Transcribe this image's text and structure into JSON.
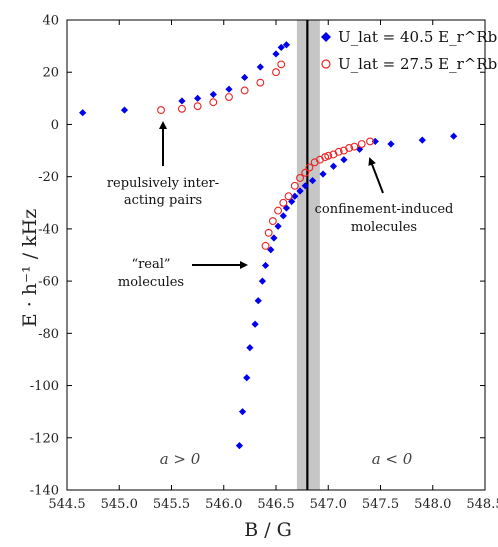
{
  "chart_data": {
    "type": "scatter",
    "xlabel": "B / G",
    "ylabel": "E · h⁻¹ / kHz",
    "xlim": [
      544.5,
      548.5
    ],
    "ylim": [
      -140,
      40
    ],
    "x_ticks": [
      544.5,
      545.0,
      545.5,
      546.0,
      546.5,
      547.0,
      547.5,
      548.0,
      548.5
    ],
    "x_tick_labels": [
      "544.5",
      "545.0",
      "545.5",
      "546.0",
      "546.5",
      "547.0",
      "547.5",
      "548.0",
      "548.5"
    ],
    "y_ticks": [
      -140,
      -120,
      -100,
      -80,
      -60,
      -40,
      -20,
      0,
      20,
      40
    ],
    "y_tick_labels": [
      "-140",
      "-120",
      "-100",
      "-80",
      "-60",
      "-40",
      "-20",
      "0",
      "20",
      "40"
    ],
    "legend_position": "top-right",
    "series": [
      {
        "name": "U_lat = 40.5 E_r^Rb",
        "marker": "diamond",
        "color": "#0000ee",
        "points": [
          [
            544.65,
            4.5
          ],
          [
            545.05,
            5.5
          ],
          [
            545.6,
            9
          ],
          [
            545.75,
            10
          ],
          [
            545.9,
            11.5
          ],
          [
            546.05,
            13.5
          ],
          [
            546.2,
            18
          ],
          [
            546.35,
            22
          ],
          [
            546.5,
            27
          ],
          [
            546.55,
            29.5
          ],
          [
            546.6,
            30.5
          ],
          [
            546.15,
            -123
          ],
          [
            546.18,
            -110
          ],
          [
            546.22,
            -97
          ],
          [
            546.25,
            -85.5
          ],
          [
            546.3,
            -76.5
          ],
          [
            546.33,
            -67.5
          ],
          [
            546.37,
            -60
          ],
          [
            546.4,
            -54
          ],
          [
            546.45,
            -48
          ],
          [
            546.48,
            -43.5
          ],
          [
            546.52,
            -39
          ],
          [
            546.57,
            -35
          ],
          [
            546.6,
            -32
          ],
          [
            546.65,
            -29.5
          ],
          [
            546.68,
            -27.5
          ],
          [
            546.73,
            -25.5
          ],
          [
            546.78,
            -23.5
          ],
          [
            546.85,
            -21.5
          ],
          [
            546.95,
            -19
          ],
          [
            547.05,
            -16
          ],
          [
            547.15,
            -13.5
          ],
          [
            547.3,
            -9.5
          ],
          [
            547.45,
            -6.5
          ],
          [
            547.6,
            -7.5
          ],
          [
            547.9,
            -6
          ],
          [
            548.2,
            -4.5
          ]
        ]
      },
      {
        "name": "U_lat = 27.5 E_r^Rb",
        "marker": "open-circle",
        "color": "#ee2222",
        "points": [
          [
            545.4,
            5.5
          ],
          [
            545.6,
            6
          ],
          [
            545.75,
            7
          ],
          [
            545.9,
            8.5
          ],
          [
            546.05,
            10.5
          ],
          [
            546.2,
            13
          ],
          [
            546.35,
            16
          ],
          [
            546.5,
            20
          ],
          [
            546.55,
            23
          ],
          [
            546.4,
            -46.5
          ],
          [
            546.43,
            -41.5
          ],
          [
            546.47,
            -37
          ],
          [
            546.52,
            -33
          ],
          [
            546.57,
            -30
          ],
          [
            546.62,
            -27.5
          ],
          [
            546.68,
            -23.5
          ],
          [
            546.73,
            -20.5
          ],
          [
            546.78,
            -18.5
          ],
          [
            546.82,
            -16.5
          ],
          [
            546.87,
            -14.5
          ],
          [
            546.92,
            -13.5
          ],
          [
            546.97,
            -12.5
          ],
          [
            547.0,
            -12
          ],
          [
            547.05,
            -11.5
          ],
          [
            547.1,
            -10.5
          ],
          [
            547.15,
            -10
          ],
          [
            547.2,
            -9
          ],
          [
            547.25,
            -8.5
          ],
          [
            547.32,
            -7.5
          ],
          [
            547.4,
            -6.5
          ]
        ]
      }
    ],
    "resonance_line_x": 546.8,
    "shaded_band_x": [
      546.7,
      546.92
    ],
    "annotations": {
      "repulsive": [
        "repulsively inter-",
        "acting pairs"
      ],
      "real": [
        "“real”",
        "molecules"
      ],
      "confinement": [
        "confinement-induced",
        "molecules"
      ],
      "region_left": "a > 0",
      "region_right": "a < 0"
    }
  }
}
